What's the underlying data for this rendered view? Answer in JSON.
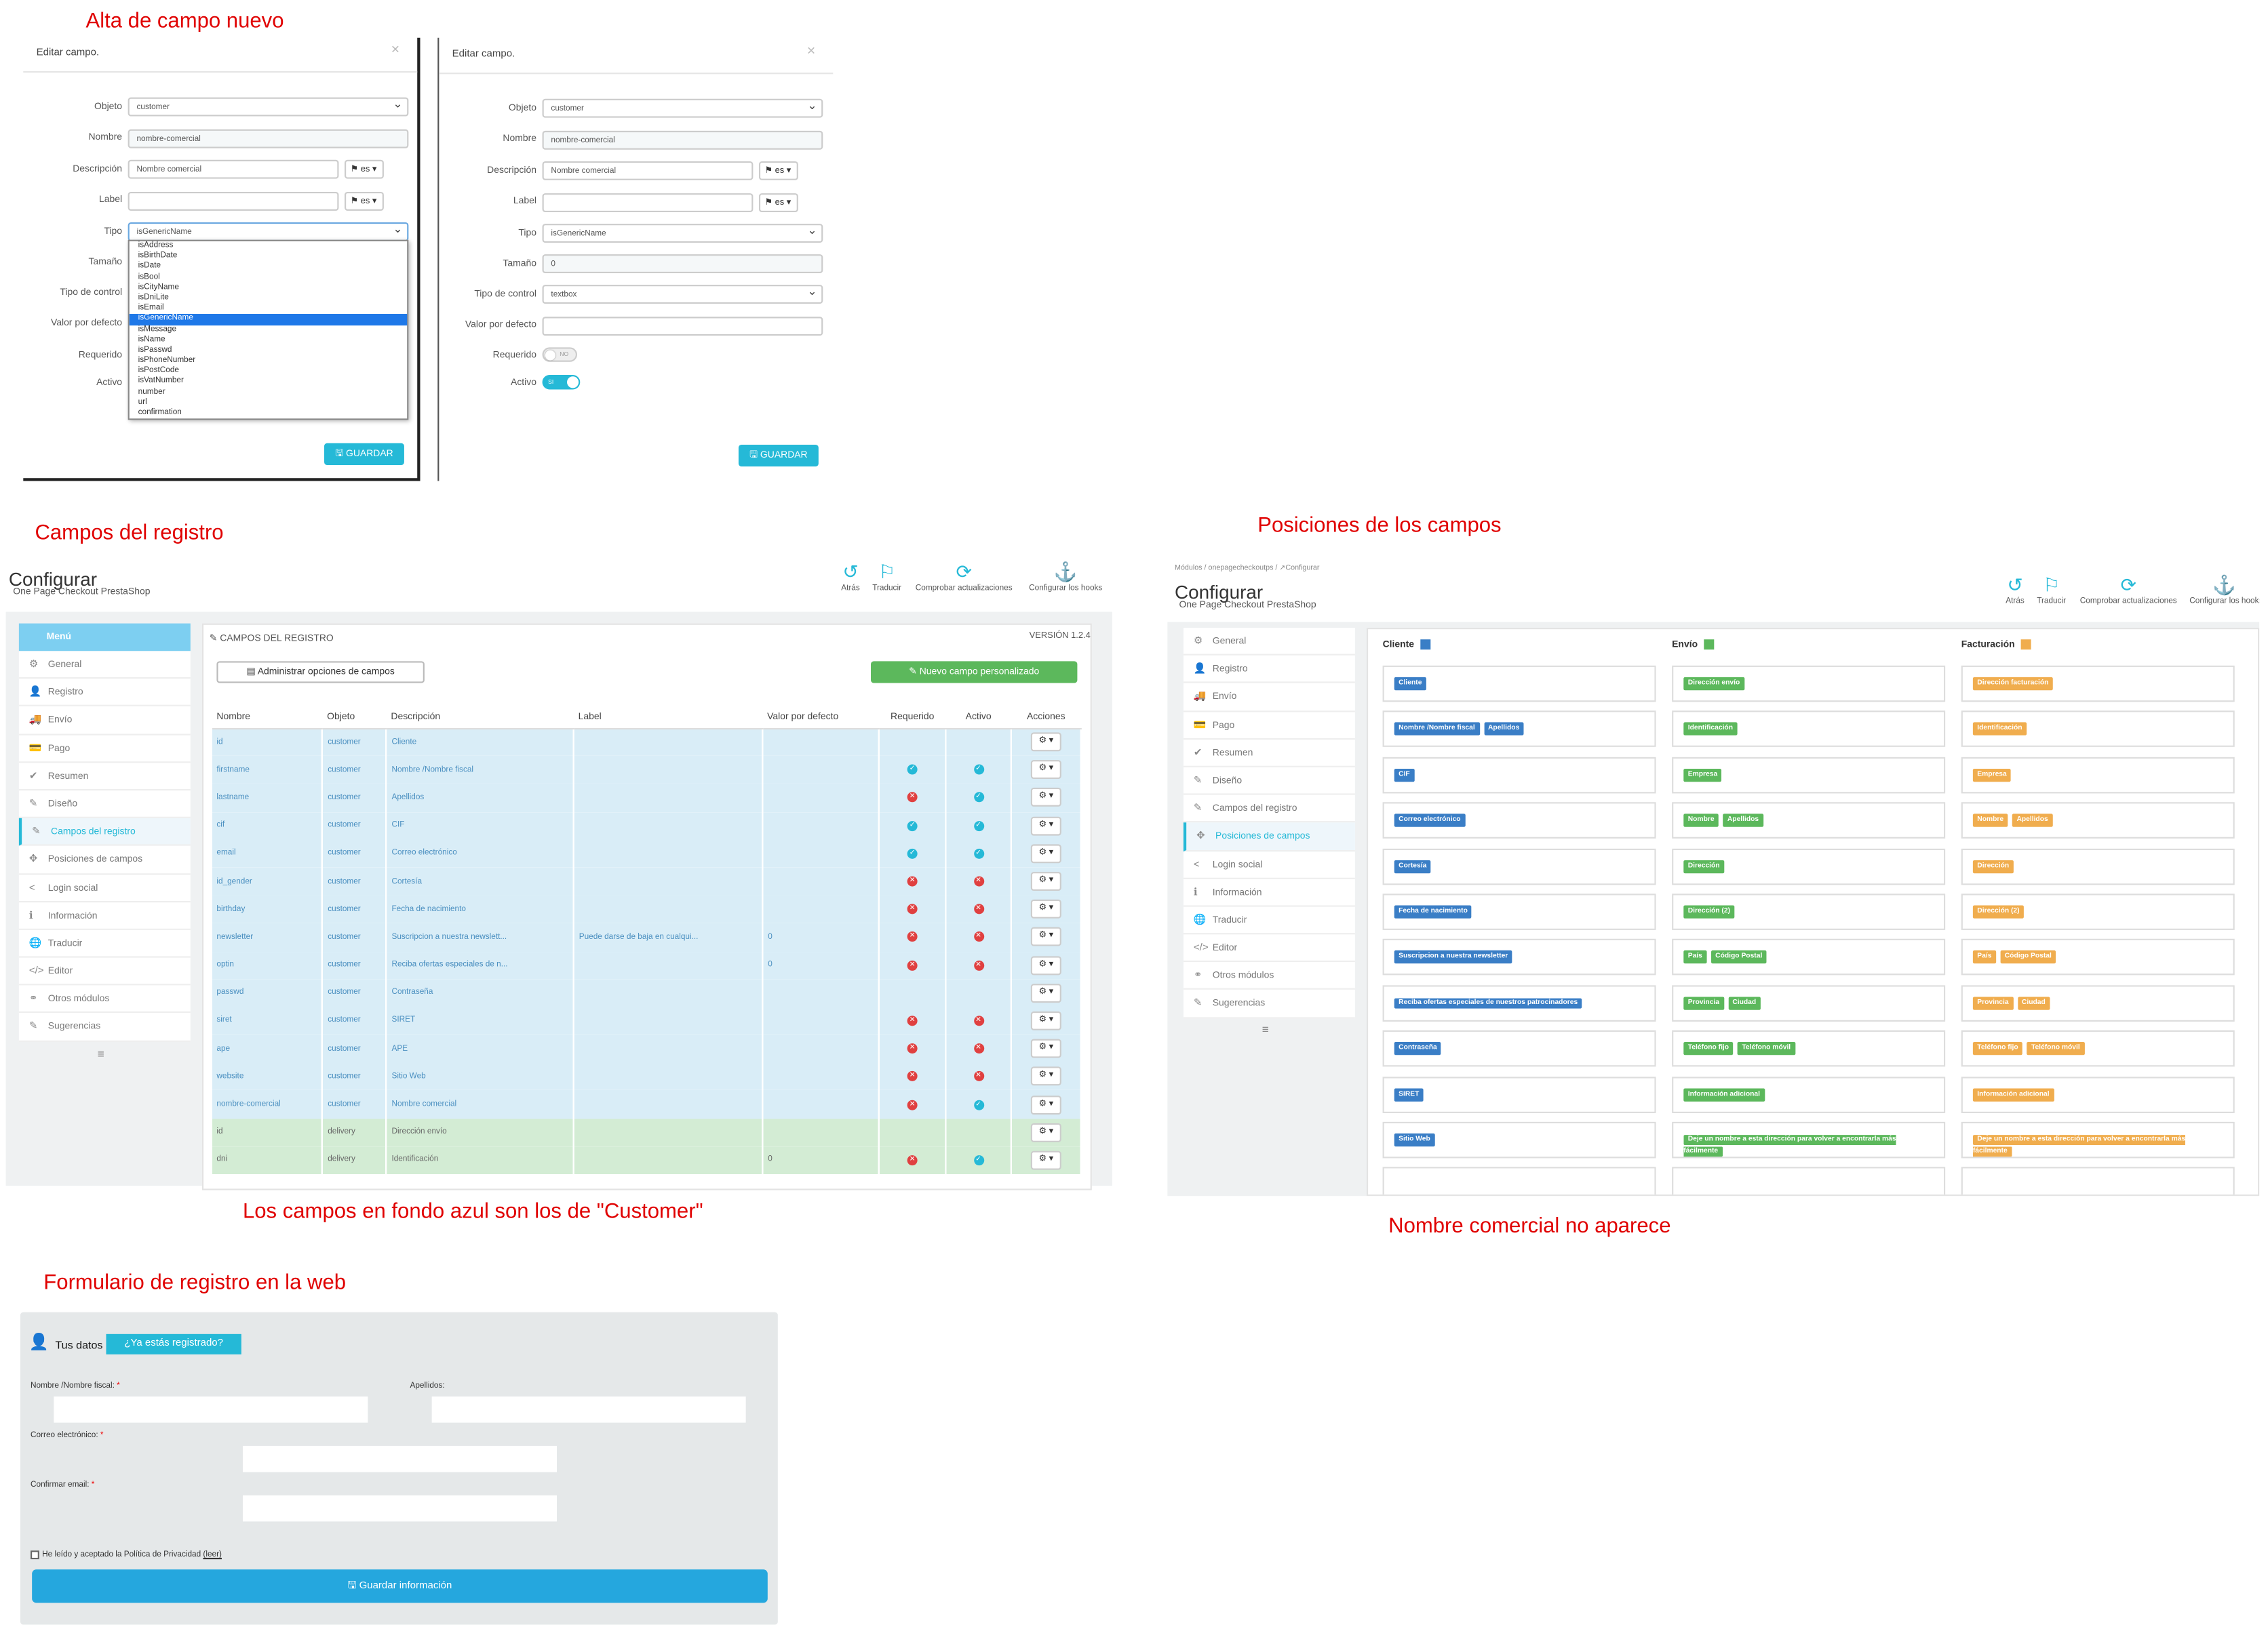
{
  "captions": {
    "alta": "Alta de campo nuevo",
    "campos": "Campos del registro",
    "posiciones": "Posiciones de los campos",
    "azul": "Los campos en fondo azul son los de \"Customer\"",
    "nocomercial": "Nombre comercial no aparece",
    "formulario": "Formulario de registro en la web"
  },
  "edit_modal": {
    "title": "Editar campo.",
    "close": "×",
    "labels": {
      "objeto": "Objeto",
      "nombre": "Nombre",
      "descripcion": "Descripción",
      "label": "Label",
      "tipo": "Tipo",
      "tamano": "Tamaño",
      "tipo_control": "Tipo de control",
      "valor_defecto": "Valor por defecto",
      "requerido": "Requerido",
      "activo": "Activo"
    },
    "objeto_value": "customer",
    "nombre_value": "nombre-comercial",
    "descripcion_value": "Nombre comercial",
    "lang": "es",
    "tipo_value": "isGenericName",
    "tamano_value": "0",
    "tipo_control_value": "textbox",
    "requerido_toggle": "NO",
    "activo_toggle": "SI",
    "save": "GUARDAR",
    "tipo_options": [
      "isAddress",
      "isBirthDate",
      "isDate",
      "isBool",
      "isCityName",
      "isDniLite",
      "isEmail",
      "isGenericName",
      "isMessage",
      "isName",
      "isPasswd",
      "isPhoneNumber",
      "isPostCode",
      "isVatNumber",
      "number",
      "url",
      "confirmation"
    ],
    "tipo_selected_index": 7
  },
  "config1": {
    "title": "Configurar",
    "subtitle": "One Page Checkout PrestaShop",
    "toolbar": [
      "Atrás",
      "Traducir",
      "Comprobar actualizaciones",
      "Configurar los hooks"
    ],
    "menu_header": "Menú",
    "menu": [
      "General",
      "Registro",
      "Envío",
      "Pago",
      "Resumen",
      "Diseño",
      "Campos del registro",
      "Posiciones de campos",
      "Login social",
      "Información",
      "Traducir",
      "Editor",
      "Otros módulos",
      "Sugerencias"
    ],
    "active_index": 6,
    "panel_title": "CAMPOS DEL REGISTRO",
    "version": "VERSIÓN 1.2.4",
    "admin_btn": "Administrar opciones de campos",
    "new_btn": "Nuevo campo personalizado",
    "columns": [
      "Nombre",
      "Objeto",
      "Descripción",
      "Label",
      "Valor por defecto",
      "Requerido",
      "Activo",
      "Acciones"
    ],
    "rows": [
      {
        "n": "id",
        "o": "customer",
        "d": "Cliente",
        "l": "",
        "v": "",
        "r": "",
        "a": "",
        "t": "c"
      },
      {
        "n": "firstname",
        "o": "customer",
        "d": "Nombre /Nombre fiscal",
        "l": "",
        "v": "",
        "r": "ok",
        "a": "ok",
        "t": "c"
      },
      {
        "n": "lastname",
        "o": "customer",
        "d": "Apellidos",
        "l": "",
        "v": "",
        "r": "no",
        "a": "ok",
        "t": "c"
      },
      {
        "n": "cif",
        "o": "customer",
        "d": "CIF",
        "l": "",
        "v": "",
        "r": "ok",
        "a": "ok",
        "t": "c"
      },
      {
        "n": "email",
        "o": "customer",
        "d": "Correo electrónico",
        "l": "",
        "v": "",
        "r": "ok",
        "a": "ok",
        "t": "c"
      },
      {
        "n": "id_gender",
        "o": "customer",
        "d": "Cortesía",
        "l": "",
        "v": "",
        "r": "no",
        "a": "no",
        "t": "c"
      },
      {
        "n": "birthday",
        "o": "customer",
        "d": "Fecha de nacimiento",
        "l": "",
        "v": "",
        "r": "no",
        "a": "no",
        "t": "c"
      },
      {
        "n": "newsletter",
        "o": "customer",
        "d": "Suscripcion a nuestra newslett...",
        "l": "Puede darse de baja en cualqui...",
        "v": "0",
        "r": "no",
        "a": "no",
        "t": "c"
      },
      {
        "n": "optin",
        "o": "customer",
        "d": "Reciba ofertas especiales de n...",
        "l": "",
        "v": "0",
        "r": "no",
        "a": "no",
        "t": "c"
      },
      {
        "n": "passwd",
        "o": "customer",
        "d": "Contraseña",
        "l": "",
        "v": "",
        "r": "",
        "a": "",
        "t": "c"
      },
      {
        "n": "siret",
        "o": "customer",
        "d": "SIRET",
        "l": "",
        "v": "",
        "r": "no",
        "a": "no",
        "t": "c"
      },
      {
        "n": "ape",
        "o": "customer",
        "d": "APE",
        "l": "",
        "v": "",
        "r": "no",
        "a": "no",
        "t": "c"
      },
      {
        "n": "website",
        "o": "customer",
        "d": "Sitio Web",
        "l": "",
        "v": "",
        "r": "no",
        "a": "no",
        "t": "c"
      },
      {
        "n": "nombre-comercial",
        "o": "customer",
        "d": "Nombre comercial",
        "l": "",
        "v": "",
        "r": "no",
        "a": "ok",
        "t": "c"
      },
      {
        "n": "id",
        "o": "delivery",
        "d": "Dirección envío",
        "l": "",
        "v": "",
        "r": "",
        "a": "",
        "t": "d"
      },
      {
        "n": "dni",
        "o": "delivery",
        "d": "Identificación",
        "l": "",
        "v": "0",
        "r": "no",
        "a": "ok",
        "t": "d"
      }
    ]
  },
  "config2": {
    "breadcrumb": [
      "Módulos",
      "onepagecheckoutps",
      "Configurar"
    ],
    "title": "Configurar",
    "subtitle": "One Page Checkout PrestaShop",
    "toolbar": [
      "Atrás",
      "Traducir",
      "Comprobar actualizaciones",
      "Configurar los hooks"
    ],
    "menu": [
      "General",
      "Registro",
      "Envío",
      "Pago",
      "Resumen",
      "Diseño",
      "Campos del registro",
      "Posiciones de campos",
      "Login social",
      "Información",
      "Traducir",
      "Editor",
      "Otros módulos",
      "Sugerencias"
    ],
    "active_index": 7,
    "col_headers": [
      "Cliente",
      "Envío",
      "Facturación"
    ],
    "col_colors": [
      "#3a7ec6",
      "#5cb85c",
      "#f0ad4e"
    ],
    "cliente": [
      [
        "Cliente"
      ],
      [
        "Nombre /Nombre fiscal",
        "Apellidos"
      ],
      [
        "CIF"
      ],
      [
        "Correo electrónico"
      ],
      [
        "Cortesía"
      ],
      [
        "Fecha de nacimiento"
      ],
      [
        "Suscripcion a nuestra newsletter"
      ],
      [
        "Reciba ofertas especiales de nuestros patrocinadores"
      ],
      [
        "Contraseña"
      ],
      [
        "SIRET"
      ],
      [
        "Sitio Web"
      ]
    ],
    "envio": [
      [
        "Dirección envío"
      ],
      [
        "Identificación"
      ],
      [
        "Empresa"
      ],
      [
        "Nombre",
        "Apellidos"
      ],
      [
        "Dirección"
      ],
      [
        "Dirección (2)"
      ],
      [
        "País",
        "Código Postal"
      ],
      [
        "Provincia",
        "Ciudad"
      ],
      [
        "Teléfono fijo",
        "Teléfono móvil"
      ],
      [
        "Información adicional"
      ],
      [
        "Deje un nombre a esta dirección para volver a encontrarla más fácilmente"
      ]
    ],
    "facturacion": [
      [
        "Dirección facturación"
      ],
      [
        "Identificación"
      ],
      [
        "Empresa"
      ],
      [
        "Nombre",
        "Apellidos"
      ],
      [
        "Dirección"
      ],
      [
        "Dirección (2)"
      ],
      [
        "País",
        "Código Postal"
      ],
      [
        "Provincia",
        "Ciudad"
      ],
      [
        "Teléfono fijo",
        "Teléfono móvil"
      ],
      [
        "Información adicional"
      ],
      [
        "Deje un nombre a esta dirección para volver a encontrarla más fácilmente"
      ]
    ]
  },
  "web_form": {
    "heading": "Tus datos",
    "registered_btn": "¿Ya estás registrado?",
    "nombre_label": "Nombre /Nombre fiscal:",
    "apellidos_label": "Apellidos:",
    "email_label": "Correo electrónico:",
    "confirm_label": "Confirmar email:",
    "required_mark": "*",
    "privacy_text": "He leído y aceptado la Política de Privacidad",
    "privacy_link": "(leer)",
    "save_btn": "Guardar información"
  }
}
